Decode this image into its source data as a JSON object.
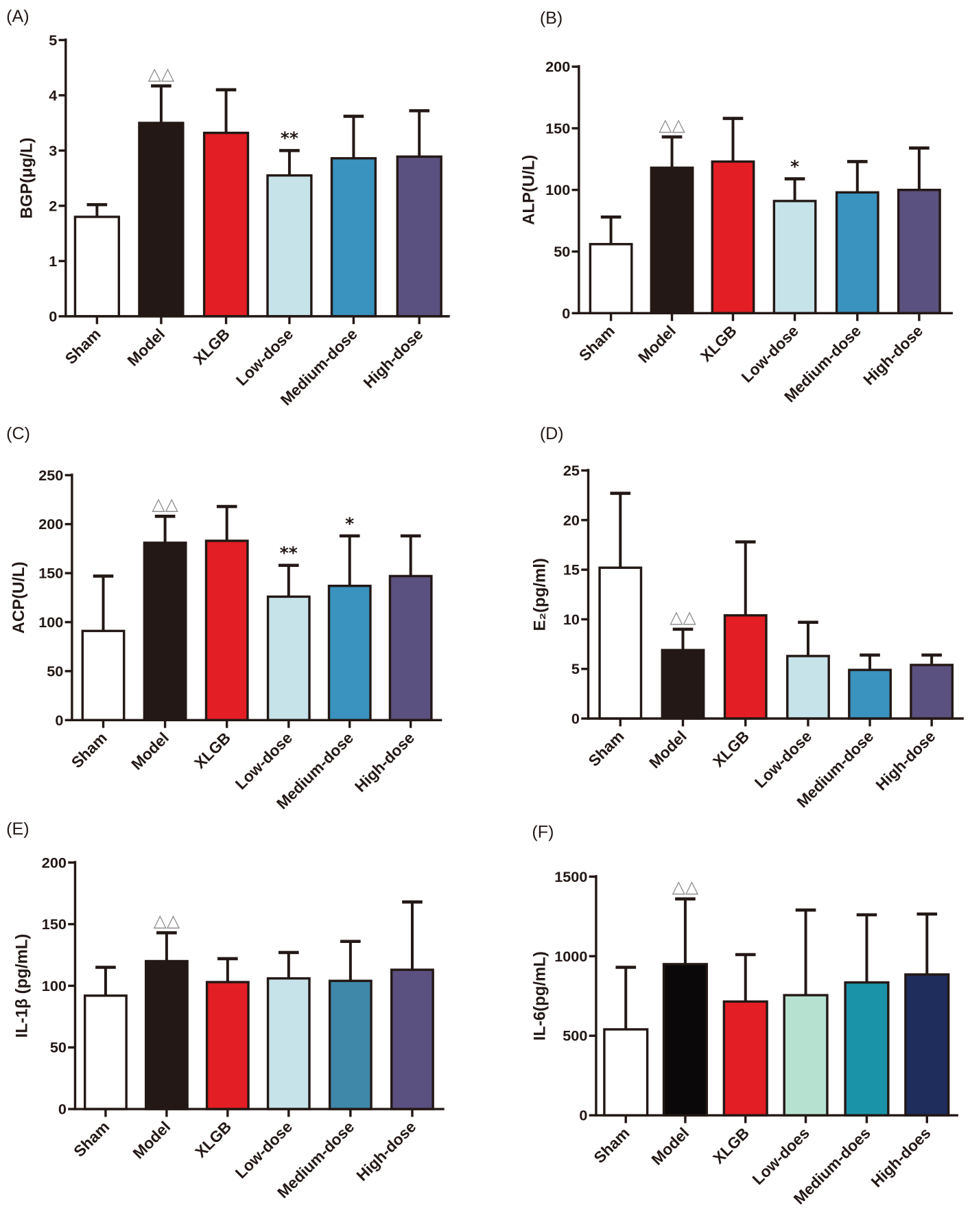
{
  "chart_data": [
    {
      "type": "bar",
      "panel": "(A)",
      "ylabel": "BGP(μg/L)",
      "ylim": [
        0,
        5
      ],
      "yticks": [
        0,
        1,
        2,
        3,
        4,
        5
      ],
      "grid": false,
      "categories": [
        "Sham",
        "Model",
        "XLGB",
        "Low-dose",
        "Medium-dose",
        "High-dose"
      ],
      "values": [
        1.8,
        3.5,
        3.32,
        2.55,
        2.86,
        2.89
      ],
      "error_upper": [
        2.02,
        4.17,
        4.1,
        3.0,
        3.62,
        3.72
      ],
      "annotations": [
        "",
        "△△",
        "",
        "**",
        "",
        ""
      ],
      "colors": [
        "#ffffff",
        "#231815",
        "#e31e24",
        "#c6e3e9",
        "#3a92bf",
        "#5a5180"
      ]
    },
    {
      "type": "bar",
      "panel": "(B)",
      "ylabel": "ALP(U/L)",
      "ylim": [
        0,
        200
      ],
      "yticks": [
        0,
        50,
        100,
        150,
        200
      ],
      "grid": false,
      "categories": [
        "Sham",
        "Model",
        "XLGB",
        "Low-dose",
        "Medium-dose",
        "High-dose"
      ],
      "values": [
        56,
        118,
        123,
        91,
        98,
        100
      ],
      "error_upper": [
        78,
        143,
        158,
        109,
        123,
        134
      ],
      "annotations": [
        "",
        "△△",
        "",
        "*",
        "",
        ""
      ],
      "colors": [
        "#ffffff",
        "#231815",
        "#e31e24",
        "#c6e3e9",
        "#3a92bf",
        "#5a5180"
      ]
    },
    {
      "type": "bar",
      "panel": "(C)",
      "ylabel": "ACP(U/L)",
      "ylim": [
        0,
        250
      ],
      "yticks": [
        0,
        50,
        100,
        150,
        200,
        250
      ],
      "grid": false,
      "categories": [
        "Sham",
        "Model",
        "XLGB",
        "Low-dose",
        "Medium-dose",
        "High-dose"
      ],
      "values": [
        91,
        181,
        183,
        126,
        137,
        147
      ],
      "error_upper": [
        147,
        208,
        218,
        158,
        188,
        188
      ],
      "annotations": [
        "",
        "△△",
        "",
        "**",
        "*",
        ""
      ],
      "colors": [
        "#ffffff",
        "#231815",
        "#e31e24",
        "#c6e3e9",
        "#3a92bf",
        "#5a5180"
      ]
    },
    {
      "type": "bar",
      "panel": "(D)",
      "ylabel": "E₂(pg/ml)",
      "ylim": [
        0,
        25
      ],
      "yticks": [
        0,
        5,
        10,
        15,
        20,
        25
      ],
      "grid": false,
      "categories": [
        "Sham",
        "Model",
        "XLGB",
        "Low-dose",
        "Medium-dose",
        "High-dose"
      ],
      "values": [
        15.2,
        6.9,
        10.4,
        6.3,
        4.9,
        5.4
      ],
      "error_upper": [
        22.7,
        9.0,
        17.8,
        9.7,
        6.4,
        6.4
      ],
      "annotations": [
        "",
        "△△",
        "",
        "",
        "",
        ""
      ],
      "colors": [
        "#ffffff",
        "#231815",
        "#e31e24",
        "#c6e3e9",
        "#3a92bf",
        "#5a5180"
      ]
    },
    {
      "type": "bar",
      "panel": "(E)",
      "ylabel": "IL-1β (pg/mL)",
      "ylim": [
        0,
        200
      ],
      "yticks": [
        0,
        50,
        100,
        150,
        200
      ],
      "grid": false,
      "categories": [
        "Sham",
        "Model",
        "XLGB",
        "Low-dose",
        "Medium-dose",
        "High-dose"
      ],
      "values": [
        92,
        120,
        103,
        106,
        104,
        113
      ],
      "error_upper": [
        115,
        143,
        122,
        127,
        136,
        168
      ],
      "annotations": [
        "",
        "△△",
        "",
        "",
        "",
        ""
      ],
      "colors": [
        "#ffffff",
        "#231815",
        "#e31e24",
        "#c6e3e9",
        "#3f88aa",
        "#5a5180"
      ]
    },
    {
      "type": "bar",
      "panel": "(F)",
      "ylabel": "IL-6(pg/mL)",
      "ylim": [
        0,
        1500
      ],
      "yticks": [
        0,
        500,
        1000,
        1500
      ],
      "grid": false,
      "categories": [
        "Sham",
        "Model",
        "XLGB",
        "Low-does",
        "Medium-does",
        "High-does"
      ],
      "values": [
        540,
        950,
        715,
        755,
        835,
        885
      ],
      "error_upper": [
        930,
        1360,
        1010,
        1290,
        1260,
        1265
      ],
      "annotations": [
        "",
        "△△",
        "",
        "",
        "",
        ""
      ],
      "colors": [
        "#ffffff",
        "#0a0808",
        "#e31e24",
        "#b6e1d1",
        "#1a93a8",
        "#1f2d5c"
      ]
    }
  ]
}
